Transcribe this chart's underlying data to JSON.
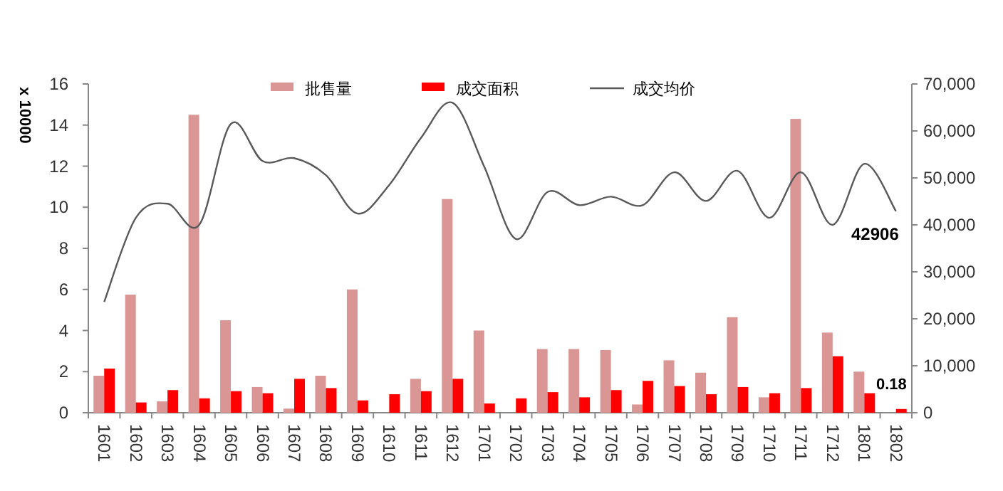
{
  "chart_data": {
    "type": "bar",
    "ylabel": "x 10000",
    "categories": [
      "1601",
      "1602",
      "1603",
      "1604",
      "1605",
      "1606",
      "1607",
      "1608",
      "1609",
      "1610",
      "1611",
      "1612",
      "1701",
      "1702",
      "1703",
      "1704",
      "1705",
      "1706",
      "1707",
      "1708",
      "1709",
      "1710",
      "1711",
      "1712",
      "1801",
      "1802"
    ],
    "series": [
      {
        "name": "批售量",
        "color": "#d99694",
        "values": [
          1.8,
          5.75,
          0.55,
          14.5,
          4.5,
          1.25,
          0.2,
          1.8,
          6.0,
          null,
          1.65,
          10.4,
          4.0,
          null,
          3.1,
          3.1,
          3.05,
          0.4,
          2.55,
          1.95,
          4.65,
          0.75,
          14.3,
          3.9,
          2.0,
          null
        ]
      },
      {
        "name": "成交面积",
        "color": "#ff0000",
        "values": [
          2.15,
          0.5,
          1.1,
          0.7,
          1.05,
          0.95,
          1.65,
          1.2,
          0.6,
          0.9,
          1.05,
          1.65,
          0.45,
          0.7,
          1.0,
          0.75,
          1.1,
          1.55,
          1.3,
          0.9,
          1.25,
          0.95,
          1.2,
          2.75,
          0.95,
          0.18
        ],
        "value_labels": [
          null,
          null,
          null,
          null,
          null,
          null,
          null,
          null,
          null,
          null,
          null,
          null,
          null,
          null,
          null,
          null,
          null,
          null,
          null,
          null,
          null,
          null,
          null,
          null,
          null,
          "0.18"
        ]
      },
      {
        "name": "成交均价",
        "type": "line",
        "axis": "y2",
        "color": "#595959",
        "values": [
          23600,
          41500,
          44500,
          40000,
          61500,
          53600,
          54200,
          50600,
          42400,
          48500,
          58500,
          66000,
          52400,
          37000,
          47000,
          44200,
          46000,
          44200,
          51200,
          45100,
          51500,
          41500,
          51200,
          40000,
          53000,
          42906
        ],
        "value_labels": [
          null,
          null,
          null,
          null,
          null,
          null,
          null,
          null,
          null,
          null,
          null,
          null,
          null,
          null,
          null,
          null,
          null,
          null,
          null,
          null,
          null,
          null,
          null,
          null,
          null,
          "42906"
        ]
      }
    ],
    "ylim": [
      0,
      16
    ],
    "yticks": [
      0,
      2,
      4,
      6,
      8,
      10,
      12,
      14,
      16
    ],
    "y2lim": [
      0,
      70000
    ],
    "y2ticks": [
      {
        "value": 0,
        "label": "0"
      },
      {
        "value": 10000,
        "label": "10,000"
      },
      {
        "value": 20000,
        "label": "20,000"
      },
      {
        "value": 30000,
        "label": "30,000"
      },
      {
        "value": 40000,
        "label": "40,000"
      },
      {
        "value": 50000,
        "label": "50,000"
      },
      {
        "value": 60000,
        "label": "60,000"
      },
      {
        "value": 70000,
        "label": "70,000"
      }
    ],
    "legend": "top",
    "grid": false
  }
}
